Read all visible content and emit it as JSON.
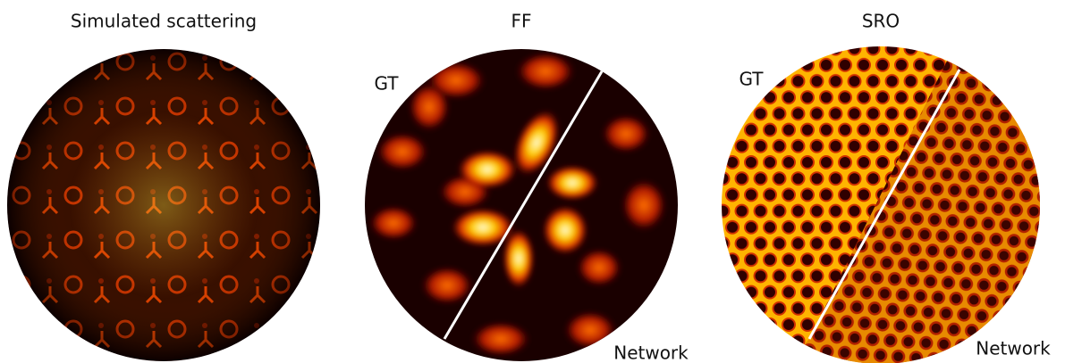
{
  "panels": [
    {
      "title": "Simulated scattering"
    },
    {
      "title": "FF",
      "left_label": "GT",
      "right_label": "Network"
    },
    {
      "title": "SRO",
      "left_label": "GT",
      "right_label": "Network"
    }
  ]
}
